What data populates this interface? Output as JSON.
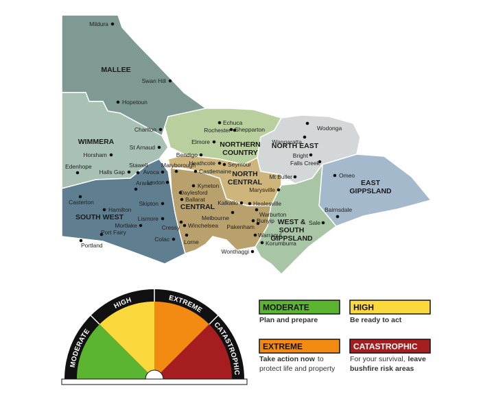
{
  "map": {
    "regions": [
      {
        "lines": [
          "MALLEE"
        ],
        "color": "#7f9a94"
      },
      {
        "lines": [
          "WIMMERA"
        ],
        "color": "#a9c1b4"
      },
      {
        "lines": [
          "SOUTH WEST"
        ],
        "color": "#5f7e8f"
      },
      {
        "lines": [
          "CENTRAL"
        ],
        "color": "#b9a16d"
      },
      {
        "lines": [
          "NORTH",
          "CENTRAL"
        ],
        "color": "#cdb57c"
      },
      {
        "lines": [
          "NORTHERN",
          "COUNTRY"
        ],
        "color": "#b9cf9e"
      },
      {
        "lines": [
          "NORTH EAST"
        ],
        "color": "#d4d7d7"
      },
      {
        "lines": [
          "EAST",
          "GIPPSLAND"
        ],
        "color": "#a4b9cb"
      },
      {
        "lines": [
          "WEST &",
          "SOUTH",
          "GIPPSLAND"
        ],
        "color": "#a8c6a5"
      }
    ],
    "towns": [
      "Mildura",
      "Swan Hill",
      "Hopetoun",
      "Charlton",
      "St Arnaud",
      "Horsham",
      "Edenhope",
      "Halls Gap",
      "Stawell",
      "Ararat",
      "Avoca",
      "Maryborough",
      "Lexton",
      "Castlemaine",
      "Heathcote",
      "Bendigo",
      "Elmore",
      "Rochester",
      "Echuca",
      "Shepparton",
      "Seymour",
      "Kyneton",
      "Daylesford",
      "Ballarat",
      "Skipton",
      "Lismore",
      "Cressy",
      "Mortlake",
      "Hamilton",
      "Casterton",
      "Port Fairy",
      "Portland",
      "Colac",
      "Winchelsea",
      "Lorne",
      "Melbourne",
      "Kalkallo",
      "Healesville",
      "Marysville",
      "Mt Buller",
      "Warburton",
      "Bunyip",
      "Pakenham",
      "Warragul",
      "Korumburra",
      "Wonthaggi",
      "Sale",
      "Bairnsdale",
      "Omeo",
      "Wodonga",
      "Wangaratta",
      "Bright",
      "Falls Creek"
    ]
  },
  "ratings": [
    {
      "label": "MODERATE",
      "color": "#5cb531",
      "text_color": "#111111",
      "parts": [
        {
          "text": "Plan and prepare",
          "bold": true
        }
      ]
    },
    {
      "label": "HIGH",
      "color": "#fbd83b",
      "text_color": "#111111",
      "parts": [
        {
          "text": "Be ready to act",
          "bold": true
        }
      ]
    },
    {
      "label": "EXTREME",
      "color": "#f38a12",
      "text_color": "#111111",
      "parts": [
        {
          "text": "Take action now",
          "bold": true
        },
        {
          "text": "to protect life and property",
          "bold": false
        }
      ]
    },
    {
      "label": "CATASTROPHIC",
      "color": "#a51d1f",
      "text_color": "#ffffff",
      "parts": [
        {
          "text": "For your survival,",
          "bold": false
        },
        {
          "text": "leave bushfire risk areas",
          "bold": true
        }
      ]
    }
  ]
}
